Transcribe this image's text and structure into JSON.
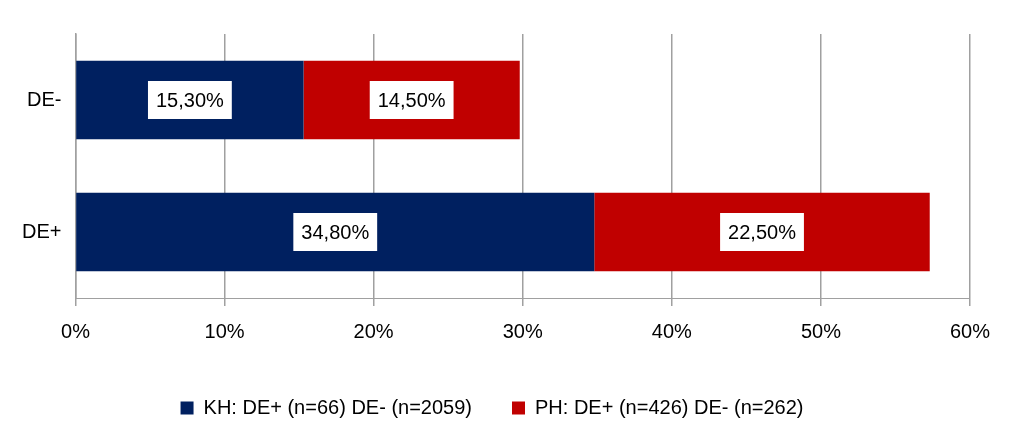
{
  "chart_data": {
    "type": "bar",
    "orientation": "horizontal",
    "stacked": true,
    "categories": [
      "DE-",
      "DE+"
    ],
    "series": [
      {
        "name": "KH: DE+ (n=66) DE- (n=2059)",
        "color": "#002060",
        "values": [
          15.3,
          34.8
        ],
        "value_labels": [
          "15,30%",
          "34,80%"
        ]
      },
      {
        "name": "PH: DE+ (n=426) DE- (n=262)",
        "color": "#c00000",
        "values": [
          14.5,
          22.5
        ],
        "value_labels": [
          "14,50%",
          "22,50%"
        ]
      }
    ],
    "xlim": [
      0,
      60
    ],
    "xticks": [
      {
        "value": 0,
        "label": "0%"
      },
      {
        "value": 10,
        "label": "10%"
      },
      {
        "value": 20,
        "label": "20%"
      },
      {
        "value": 30,
        "label": "30%"
      },
      {
        "value": 40,
        "label": "40%"
      },
      {
        "value": 50,
        "label": "50%"
      },
      {
        "value": 60,
        "label": "60%"
      }
    ],
    "grid": "x",
    "legend": "bottom"
  }
}
